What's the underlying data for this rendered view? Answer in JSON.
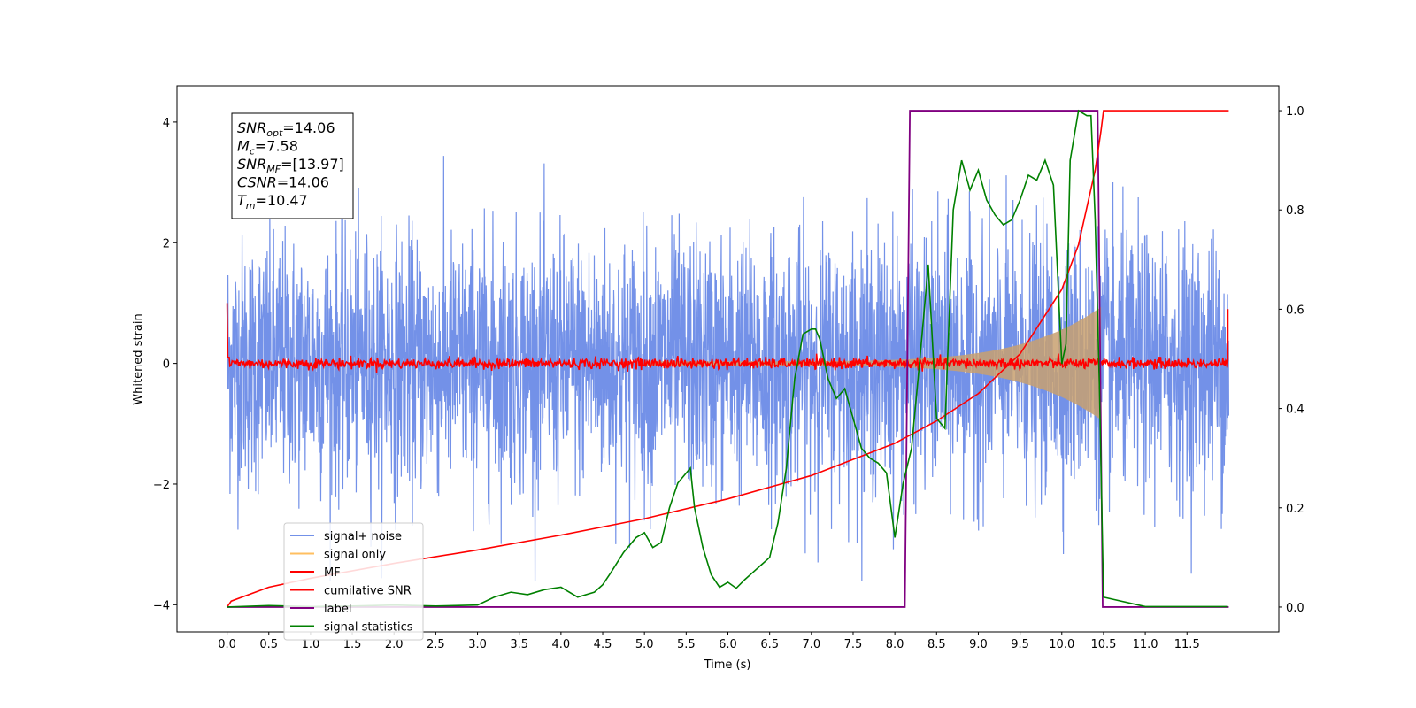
{
  "chart_data": {
    "type": "line",
    "xlabel": "Time (s)",
    "ylabel": "Whitened strain",
    "xlim": [
      -0.6,
      12.6
    ],
    "ylim": [
      -4.45,
      4.6
    ],
    "ylim_right": [
      -0.05,
      1.05
    ],
    "xticks": [
      "0.0",
      "0.5",
      "1.0",
      "1.5",
      "2.0",
      "2.5",
      "3.0",
      "3.5",
      "4.0",
      "4.5",
      "5.0",
      "5.5",
      "6.0",
      "6.5",
      "7.0",
      "7.5",
      "8.0",
      "8.5",
      "9.0",
      "9.5",
      "10.0",
      "10.5",
      "11.0",
      "11.5"
    ],
    "yticks_left": [
      "−4",
      "−2",
      "0",
      "2",
      "4"
    ],
    "yticks_right": [
      "0.0",
      "0.2",
      "0.4",
      "0.6",
      "0.8",
      "1.0"
    ],
    "colors": {
      "noise": "#7391e8",
      "signal": "#c8a070",
      "mf": "#ff0000",
      "csnr": "#ff0000",
      "label": "#800080",
      "stats": "#008000"
    },
    "legend": {
      "placement": "lower-left",
      "entries": [
        {
          "name": "signal+ noise",
          "color": "#7391e8"
        },
        {
          "name": "signal only",
          "color": "#ffbf60"
        },
        {
          "name": "MF",
          "color": "#ff0000"
        },
        {
          "name": "cumilative SNR",
          "color": "#ff0000"
        },
        {
          "name": "label",
          "color": "#800080"
        },
        {
          "name": "signal statistics",
          "color": "#008000"
        }
      ]
    },
    "annotation": [
      {
        "main": "SNR",
        "sub": "opt",
        "rest": "=14.06"
      },
      {
        "main": "M",
        "sub": "c",
        "rest": "=7.58"
      },
      {
        "main": "SNR",
        "sub": "MF",
        "rest": "=[13.97]"
      },
      {
        "main": "CSNR",
        "sub": "",
        "rest": "=14.06"
      },
      {
        "main": "T",
        "sub": "m",
        "rest": "=10.47"
      }
    ],
    "series": [
      {
        "name": "label",
        "axis": "right",
        "x": [
          0.0,
          8.12,
          8.18,
          10.43,
          10.49,
          12.0
        ],
        "y": [
          0.0,
          0.0,
          1.0,
          1.0,
          0.0,
          0.0
        ]
      },
      {
        "name": "cumilative SNR",
        "axis": "right",
        "x": [
          0.0,
          0.05,
          0.5,
          1.0,
          2.0,
          3.0,
          4.0,
          5.0,
          6.0,
          7.0,
          8.0,
          8.5,
          9.0,
          9.5,
          10.0,
          10.2,
          10.4,
          10.47,
          10.5,
          12.0
        ],
        "y": [
          0.0,
          0.012,
          0.04,
          0.058,
          0.088,
          0.115,
          0.145,
          0.178,
          0.218,
          0.265,
          0.33,
          0.375,
          0.43,
          0.51,
          0.64,
          0.73,
          0.88,
          0.96,
          1.0,
          1.0
        ]
      },
      {
        "name": "signal statistics",
        "axis": "right",
        "x": [
          0.0,
          0.5,
          1.0,
          1.5,
          2.0,
          2.5,
          3.0,
          3.2,
          3.4,
          3.6,
          3.8,
          4.0,
          4.2,
          4.4,
          4.5,
          4.6,
          4.75,
          4.9,
          5.0,
          5.1,
          5.2,
          5.3,
          5.4,
          5.5,
          5.55,
          5.6,
          5.7,
          5.8,
          5.9,
          6.0,
          6.1,
          6.2,
          6.3,
          6.4,
          6.5,
          6.6,
          6.7,
          6.8,
          6.9,
          7.0,
          7.05,
          7.1,
          7.2,
          7.3,
          7.4,
          7.5,
          7.6,
          7.7,
          7.8,
          7.9,
          8.0,
          8.1,
          8.2,
          8.3,
          8.4,
          8.5,
          8.6,
          8.7,
          8.8,
          8.9,
          9.0,
          9.1,
          9.2,
          9.3,
          9.4,
          9.5,
          9.6,
          9.7,
          9.8,
          9.9,
          10.0,
          10.05,
          10.1,
          10.2,
          10.3,
          10.35,
          10.4,
          10.45,
          10.5,
          11.0,
          11.5,
          11.99
        ],
        "y": [
          0.0,
          0.003,
          0.001,
          0.002,
          0.004,
          0.002,
          0.004,
          0.02,
          0.03,
          0.025,
          0.035,
          0.04,
          0.02,
          0.03,
          0.045,
          0.07,
          0.11,
          0.14,
          0.15,
          0.12,
          0.13,
          0.2,
          0.25,
          0.27,
          0.28,
          0.2,
          0.12,
          0.065,
          0.04,
          0.05,
          0.038,
          0.055,
          0.07,
          0.085,
          0.1,
          0.17,
          0.28,
          0.46,
          0.55,
          0.56,
          0.56,
          0.54,
          0.46,
          0.42,
          0.44,
          0.38,
          0.32,
          0.3,
          0.29,
          0.27,
          0.14,
          0.25,
          0.32,
          0.5,
          0.69,
          0.38,
          0.36,
          0.8,
          0.9,
          0.84,
          0.88,
          0.82,
          0.79,
          0.77,
          0.78,
          0.82,
          0.87,
          0.86,
          0.9,
          0.85,
          0.49,
          0.53,
          0.9,
          1.0,
          0.99,
          0.99,
          0.78,
          0.45,
          0.02,
          0.001,
          0.001,
          0.001
        ]
      }
    ]
  }
}
